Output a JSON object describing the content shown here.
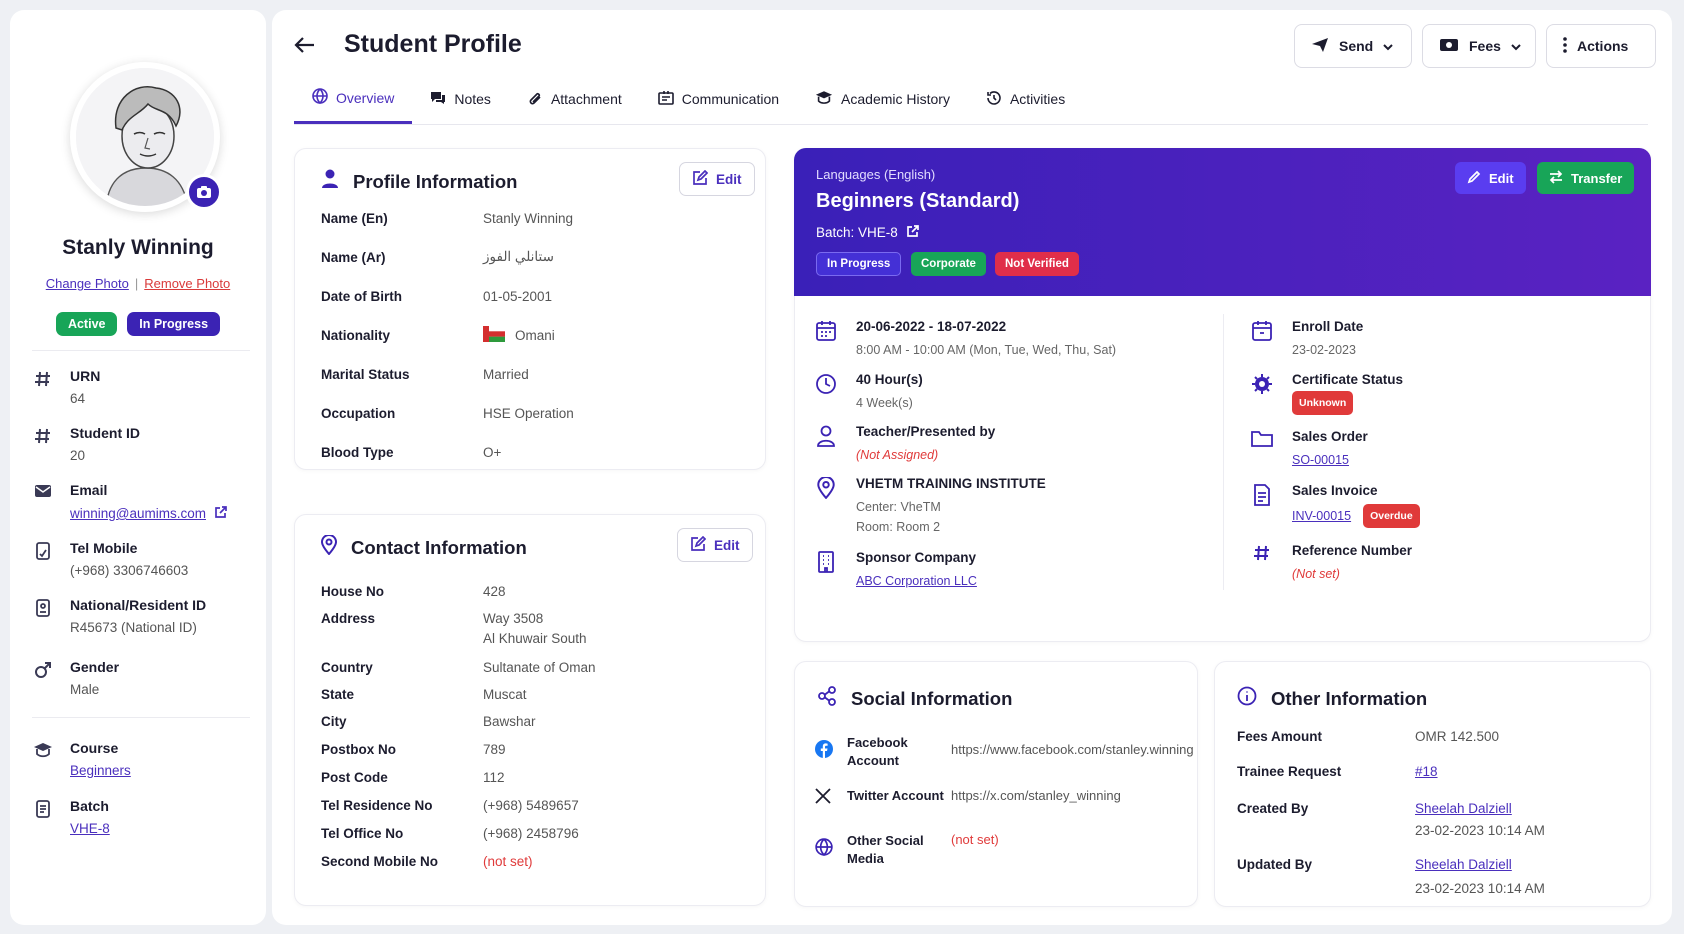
{
  "sidebar": {
    "name": "Stanly Winning",
    "change_photo": "Change Photo",
    "remove_photo": "Remove Photo",
    "separator": "|",
    "status_active": "Active",
    "status_progress": "In Progress",
    "items": [
      {
        "label": "URN",
        "value": "64",
        "icon": "hash-icon"
      },
      {
        "label": "Student ID",
        "value": "20",
        "icon": "hash-icon"
      },
      {
        "label": "Email",
        "value": "winning@aumims.com",
        "icon": "mail-icon"
      },
      {
        "label": "Tel Mobile",
        "value": "(+968) 3306746603",
        "icon": "phone-icon"
      },
      {
        "label": "National/Resident ID",
        "value": "R45673 (National ID)",
        "icon": "id-card-icon"
      },
      {
        "label": "Gender",
        "value": "Male",
        "icon": "male-icon"
      },
      {
        "label": "Course",
        "value": "Beginners",
        "icon": "graduation-cap-icon"
      },
      {
        "label": "Batch",
        "value": "VHE-8",
        "icon": "document-icon"
      }
    ]
  },
  "header": {
    "title": "Student Profile",
    "send": "Send",
    "fees": "Fees",
    "actions": "Actions"
  },
  "tabs": [
    "Overview",
    "Notes",
    "Attachment",
    "Communication",
    "Academic History",
    "Activities"
  ],
  "profile": {
    "title": "Profile Information",
    "edit": "Edit",
    "rows": [
      {
        "k": "Name (En)",
        "v": "Stanly Winning"
      },
      {
        "k": "Name (Ar)",
        "v": "ستانلي الفوز"
      },
      {
        "k": "Date of Birth",
        "v": "01-05-2001"
      },
      {
        "k": "Nationality",
        "v": "Omani"
      },
      {
        "k": "Marital Status",
        "v": "Married"
      },
      {
        "k": "Occupation",
        "v": "HSE Operation"
      },
      {
        "k": "Blood Type",
        "v": "O+"
      }
    ]
  },
  "contact": {
    "title": "Contact Information",
    "edit": "Edit",
    "rows": [
      {
        "k": "House No",
        "v": "428"
      },
      {
        "k": "Address",
        "v": "Way 3508",
        "v2": "Al Khuwair South"
      },
      {
        "k": "Country",
        "v": "Sultanate of Oman"
      },
      {
        "k": "State",
        "v": "Muscat"
      },
      {
        "k": "City",
        "v": "Bawshar"
      },
      {
        "k": "Postbox No",
        "v": "789"
      },
      {
        "k": "Post Code",
        "v": "112"
      },
      {
        "k": "Tel Residence No",
        "v": "(+968) 5489657"
      },
      {
        "k": "Tel Office No",
        "v": "(+968) 2458796"
      },
      {
        "k": "Second Mobile No",
        "v": "(not set)"
      }
    ]
  },
  "course": {
    "category": "Languages (English)",
    "name": "Beginners (Standard)",
    "batch": "Batch: VHE-8",
    "pills": [
      "In Progress",
      "Corporate",
      "Not Verified"
    ],
    "edit": "Edit",
    "transfer": "Transfer",
    "left": [
      {
        "t": "20-06-2022 - 18-07-2022",
        "s": "8:00 AM - 10:00 AM (Mon, Tue, Wed, Thu, Sat)"
      },
      {
        "t": "40 Hour(s)",
        "s": "4 Week(s)"
      },
      {
        "t": "Teacher/Presented by",
        "s": "(Not Assigned)"
      },
      {
        "t": "VHETM TRAINING INSTITUTE",
        "s": "Center: VheTM",
        "s2": "Room: Room 2"
      },
      {
        "t": "Sponsor Company",
        "s": "ABC Corporation LLC"
      }
    ],
    "right": [
      {
        "t": "Enroll Date",
        "s": "23-02-2023"
      },
      {
        "t": "Certificate Status",
        "s": "Unknown"
      },
      {
        "t": "Sales Order",
        "s": "SO-00015"
      },
      {
        "t": "Sales Invoice",
        "s": "INV-00015",
        "tag": "Overdue"
      },
      {
        "t": "Reference Number",
        "s": "(Not set)"
      }
    ]
  },
  "social": {
    "title": "Social Information",
    "rows": [
      {
        "k": "Facebook Account",
        "v": "https://www.facebook.com/stanley.winning"
      },
      {
        "k": "Twitter Account",
        "v": "https://x.com/stanley_winning"
      },
      {
        "k": "Other Social Media",
        "v": "(not set)"
      }
    ]
  },
  "other": {
    "title": "Other Information",
    "rows": [
      {
        "k": "Fees Amount",
        "v": "OMR 142.500"
      },
      {
        "k": "Trainee Request",
        "v": "#18"
      },
      {
        "k": "Created By",
        "v": "Sheelah Dalziell",
        "v2": "23-02-2023 10:14 AM"
      },
      {
        "k": "Updated By",
        "v": "Sheelah Dalziell",
        "v2": "23-02-2023 10:14 AM"
      }
    ]
  },
  "colors": {
    "primary": "#3b23b4",
    "active": "#18a558",
    "danger": "#e03a3a"
  }
}
